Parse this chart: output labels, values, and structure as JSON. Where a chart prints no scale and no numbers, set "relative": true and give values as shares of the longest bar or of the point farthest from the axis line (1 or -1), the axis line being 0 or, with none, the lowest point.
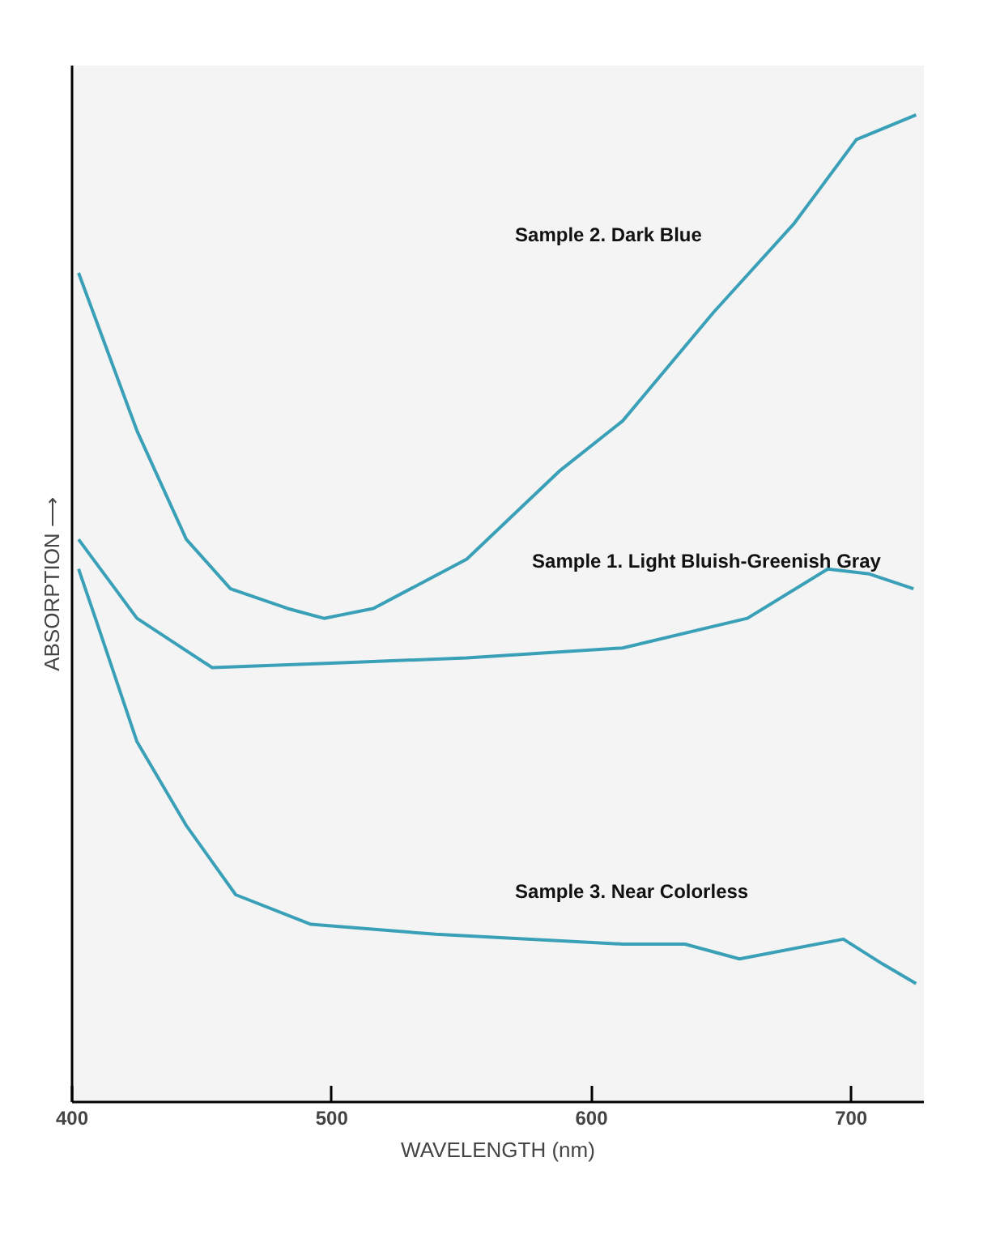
{
  "chart_data": {
    "type": "line",
    "relative": true,
    "xlabel": "WAVELENGTH (nm)",
    "ylabel": "ABSORPTION ⟶",
    "xlim": [
      400,
      728
    ],
    "xticks": [
      400,
      500,
      600,
      700
    ],
    "grid": false,
    "legend": false,
    "marker": "none",
    "line_style": "solid",
    "series": [
      {
        "name": "Sample 2.  Dark Blue",
        "color": "#3aa0b8",
        "x": [
          402.5,
          425,
          444,
          461,
          483,
          497,
          516,
          552,
          588,
          612,
          647,
          678,
          702,
          725
        ],
        "values": [
          0.84,
          0.68,
          0.57,
          0.52,
          0.5,
          0.49,
          0.5,
          0.55,
          0.64,
          0.69,
          0.8,
          0.89,
          0.975,
          1.0
        ]
      },
      {
        "name": "Sample 1.  Light Bluish-Greenish Gray",
        "color": "#3aa0b8",
        "x": [
          402.5,
          425,
          454,
          504,
          552,
          612,
          660,
          691,
          707,
          724
        ],
        "values": [
          0.57,
          0.49,
          0.44,
          0.445,
          0.45,
          0.46,
          0.49,
          0.54,
          0.535,
          0.52
        ]
      },
      {
        "name": "Sample 3.  Near Colorless",
        "color": "#3aa0b8",
        "x": [
          402.5,
          409,
          425,
          444,
          463,
          492,
          540,
          612,
          636,
          657,
          697,
          712,
          725
        ],
        "values": [
          0.54,
          0.49,
          0.365,
          0.28,
          0.21,
          0.18,
          0.17,
          0.16,
          0.16,
          0.145,
          0.165,
          0.14,
          0.12
        ]
      }
    ]
  }
}
